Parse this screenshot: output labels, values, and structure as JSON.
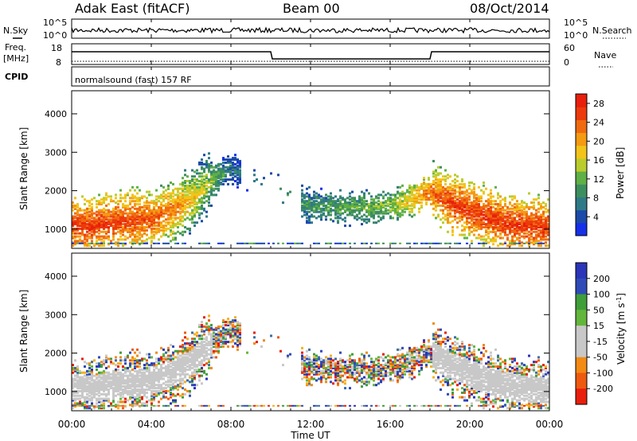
{
  "header": {
    "station": "Adak East (fitACF)",
    "beam": "Beam 00",
    "date": "08/Oct/2014"
  },
  "side_labels": {
    "nsky": "N.Sky",
    "freq": "Freq.",
    "mhz": "[MHz]",
    "cpid": "CPID",
    "nsearch": "N.Search",
    "nave": "Nave"
  },
  "noise_panel": {
    "ytick_hi": "10^5",
    "ytick_lo": "10^0",
    "rtick_hi": "10^5",
    "rtick_lo": "10^0"
  },
  "freq_panel": {
    "ytick_hi": "18",
    "ytick_lo": "8",
    "rtick_hi": "60",
    "rtick_lo": "0"
  },
  "cpid_text": "normalsound (fast) 157 RF",
  "colors": {
    "power_scale": [
      "#1530e8",
      "#1c4aa8",
      "#2f7a86",
      "#3d8e5f",
      "#5fb046",
      "#b9cc2c",
      "#f2c41a",
      "#f49a13",
      "#f06a10",
      "#ec3a0c",
      "#e81f0c"
    ],
    "velocity_scale": [
      "#e81f0c",
      "#ee5a10",
      "#f28a14",
      "#f5b01c",
      "#c8c8c8",
      "#c8c8c8",
      "#63b63c",
      "#3f9e39",
      "#3a6ea8",
      "#2f4bb8",
      "#2a35b8"
    ]
  },
  "chart_data": [
    {
      "type": "heatmap",
      "name": "power",
      "ylabel": "Slant Range [km]",
      "yticks": [
        "1000",
        "2000",
        "3000",
        "4000"
      ],
      "ylim": [
        500,
        4600
      ],
      "colorbar": {
        "label": "Power [dB]",
        "ticks": [
          "4",
          "8",
          "12",
          "16",
          "20",
          "24",
          "28"
        ],
        "range": [
          0,
          30
        ]
      },
      "x_hours": [
        0,
        1,
        2,
        3,
        4,
        5,
        6,
        7,
        8,
        12,
        14,
        16,
        18,
        19,
        20,
        21,
        22,
        23,
        24
      ],
      "echo_center_km": [
        1150,
        1100,
        1200,
        1250,
        1300,
        1500,
        1800,
        2300,
        2600,
        1600,
        1600,
        1600,
        2000,
        1700,
        1500,
        1300,
        1150,
        1100,
        1050
      ],
      "peak_power_db": [
        28,
        28,
        28,
        27,
        26,
        24,
        20,
        14,
        6,
        10,
        12,
        14,
        24,
        28,
        28,
        28,
        28,
        28,
        28
      ]
    },
    {
      "type": "heatmap",
      "name": "velocity",
      "ylabel": "Slant Range [km]",
      "yticks": [
        "1000",
        "2000",
        "3000",
        "4000"
      ],
      "ylim": [
        500,
        4600
      ],
      "colorbar": {
        "label": "Velocity [m s^-1]",
        "ticks": [
          "200",
          "100",
          "50",
          "15",
          "-15",
          "-50",
          "-100",
          "-200"
        ]
      },
      "xlabel": "Time UT",
      "xticks": [
        "00:00",
        "04:00",
        "08:00",
        "12:00",
        "16:00",
        "20:00",
        "00:00"
      ],
      "xlim": [
        0,
        24
      ]
    }
  ]
}
